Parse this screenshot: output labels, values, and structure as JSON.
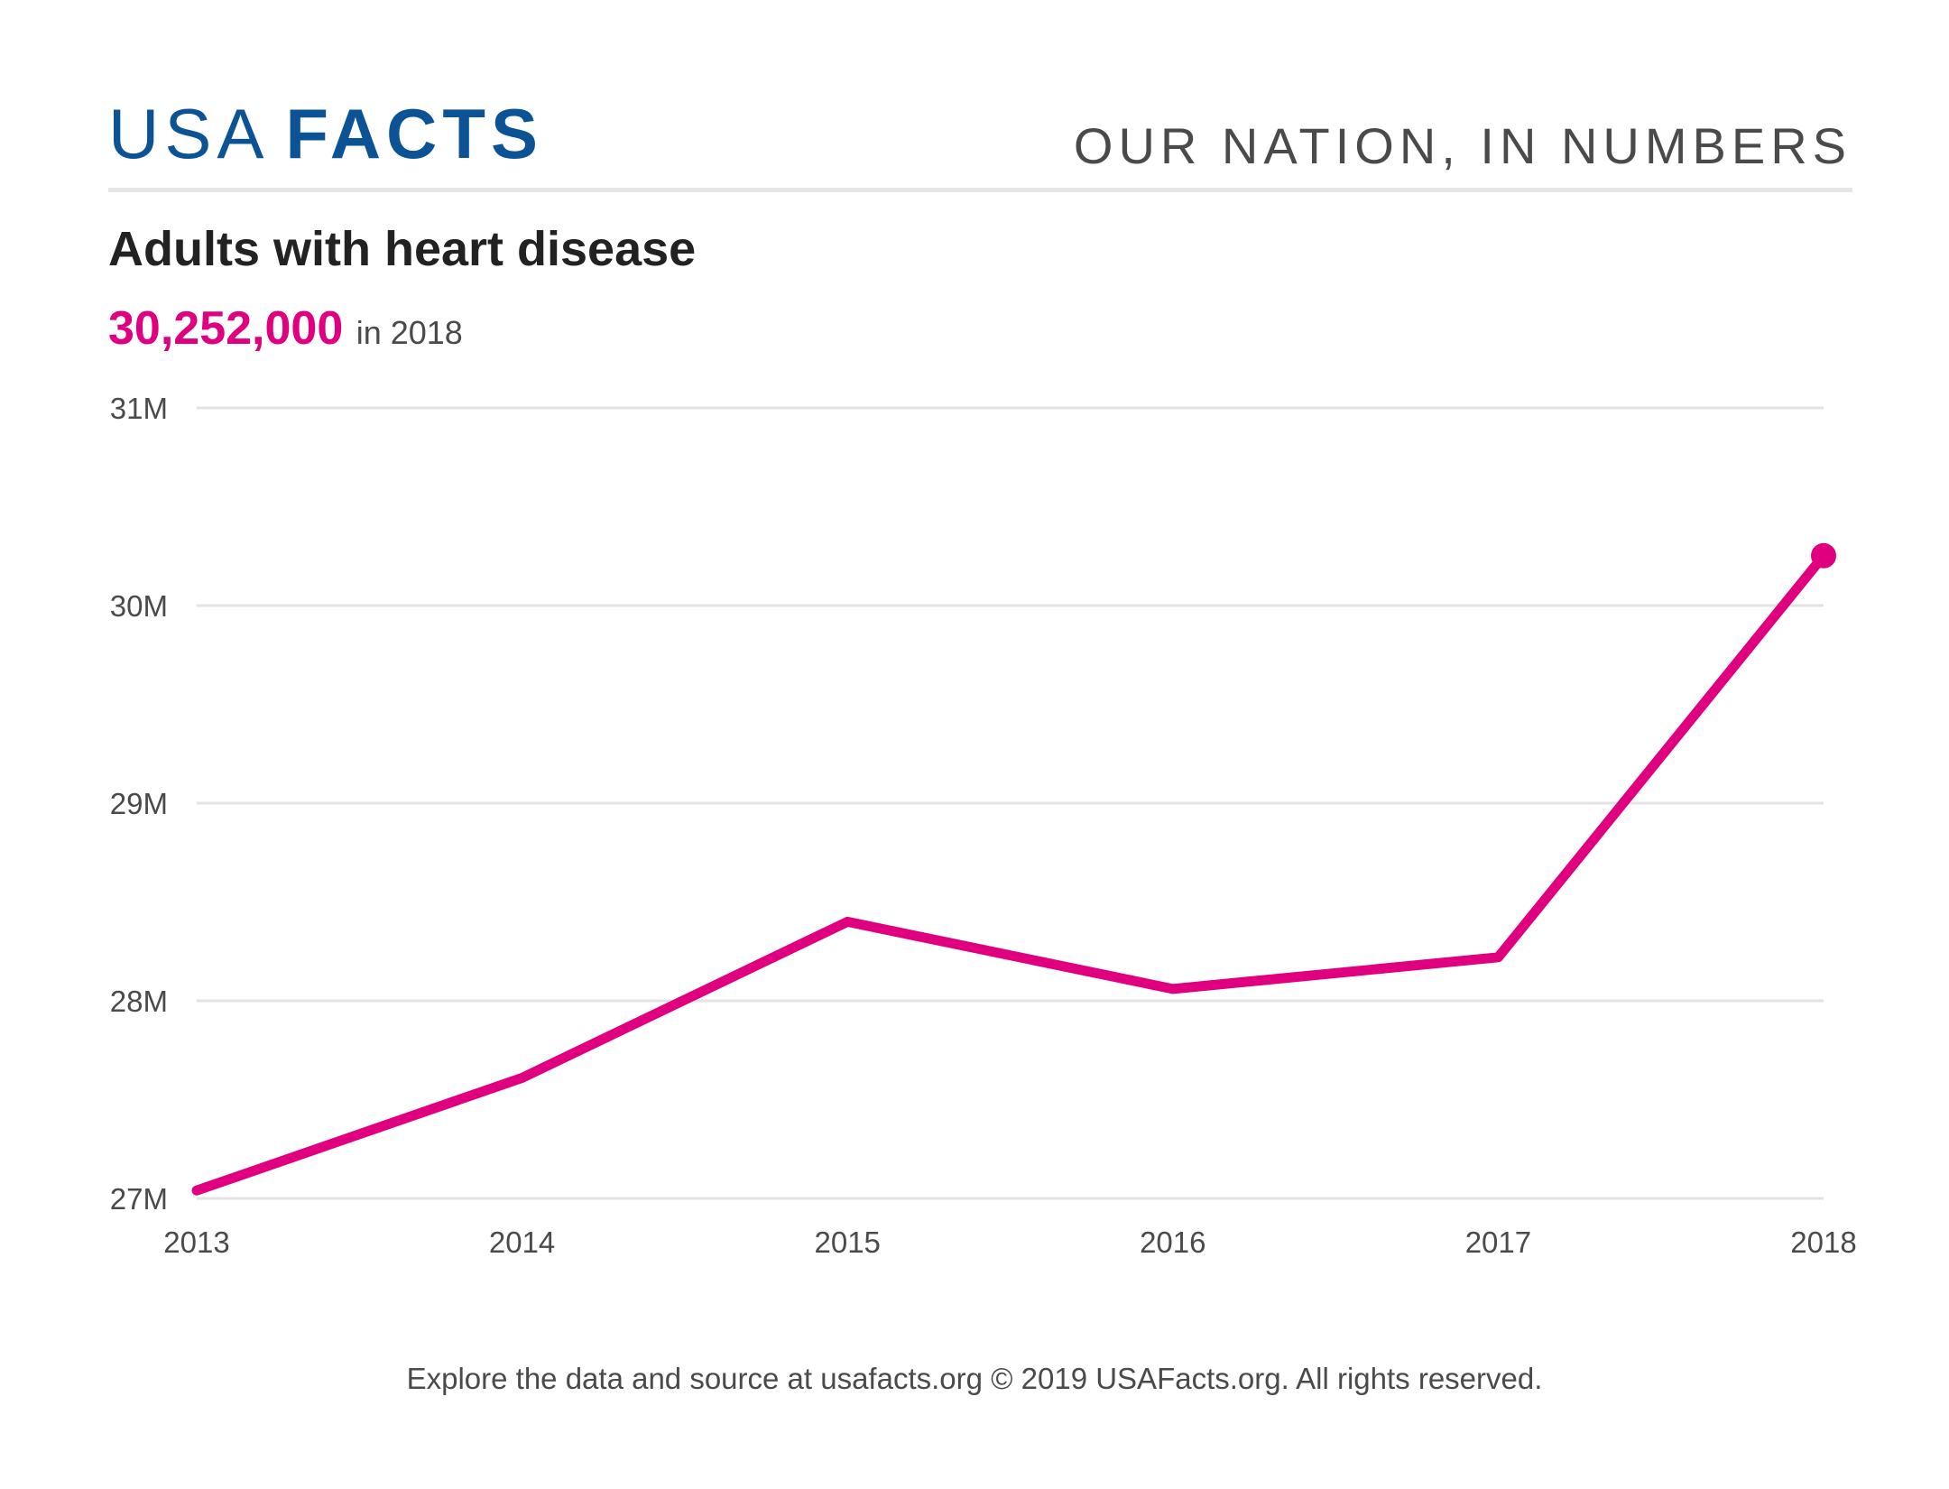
{
  "brand": {
    "logo_light": "USA",
    "logo_bold": "FACTS",
    "logo_color": "#0b5394",
    "tagline": "OUR NATION, IN NUMBERS"
  },
  "headline": {
    "value": "30,252,000",
    "suffix": "in 2018",
    "value_color": "#e0007f"
  },
  "footer": {
    "text": "Explore the data and source at usafacts.org © 2019 USAFacts.org. All rights reserved."
  },
  "chart_data": {
    "type": "line",
    "title": "Adults with heart disease",
    "xlabel": "",
    "ylabel": "",
    "x": [
      "2013",
      "2014",
      "2015",
      "2016",
      "2017",
      "2018"
    ],
    "series": [
      {
        "values": [
          27040000,
          27610000,
          28400000,
          28060000,
          28220000,
          30252000
        ],
        "color": "#e0007f"
      }
    ],
    "ylim": [
      27000000,
      31000000
    ],
    "yticks": [
      27000000,
      28000000,
      29000000,
      30000000,
      31000000
    ],
    "ytick_labels": [
      "27M",
      "28M",
      "29M",
      "30M",
      "31M"
    ],
    "grid": true,
    "legend": "none",
    "end_marker": true
  }
}
